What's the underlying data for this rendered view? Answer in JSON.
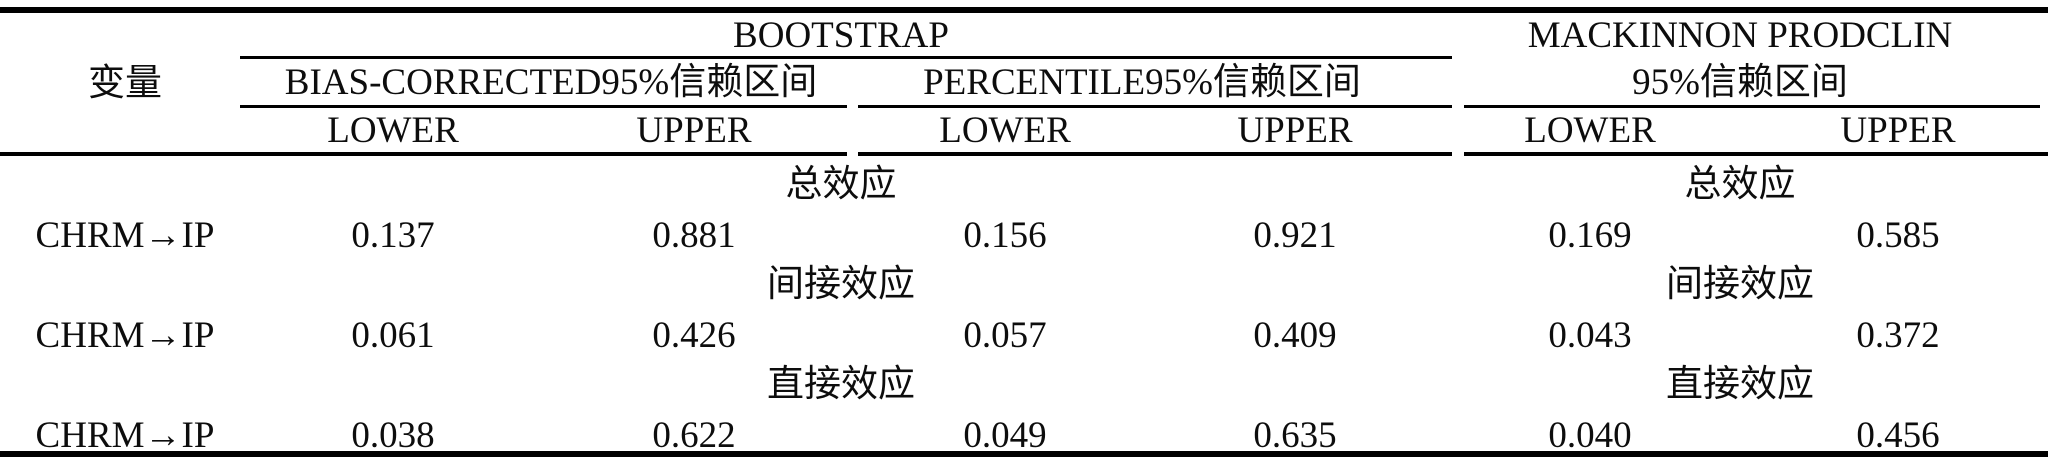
{
  "table": {
    "variable_col_header": "变量",
    "bootstrap_group": {
      "label": "BOOTSTRAP",
      "bias_corrected_label": "BIAS-CORRECTED95%信赖区间",
      "percentile_label": "PERCENTILE95%信赖区间"
    },
    "mackinnon_group": {
      "label": "MACKINNON PRODCLIN",
      "ci_label": "95%信赖区间"
    },
    "col_labels": {
      "lower": "LOWER",
      "upper": "UPPER"
    },
    "sections": [
      {
        "label": "总效应",
        "row": {
          "variable": "CHRM→IP",
          "values": [
            "0.137",
            "0.881",
            "0.156",
            "0.921",
            "0.169",
            "0.585"
          ]
        }
      },
      {
        "label": "间接效应",
        "row": {
          "variable": "CHRM→IP",
          "values": [
            "0.061",
            "0.426",
            "0.057",
            "0.409",
            "0.043",
            "0.372"
          ]
        }
      },
      {
        "label": "直接效应",
        "row": {
          "variable": "CHRM→IP",
          "values": [
            "0.038",
            "0.622",
            "0.049",
            "0.635",
            "0.040",
            "0.456"
          ]
        }
      }
    ],
    "colors": {
      "background": "#ffffff",
      "text": "#0d0d0d",
      "rule": "#000000"
    }
  }
}
